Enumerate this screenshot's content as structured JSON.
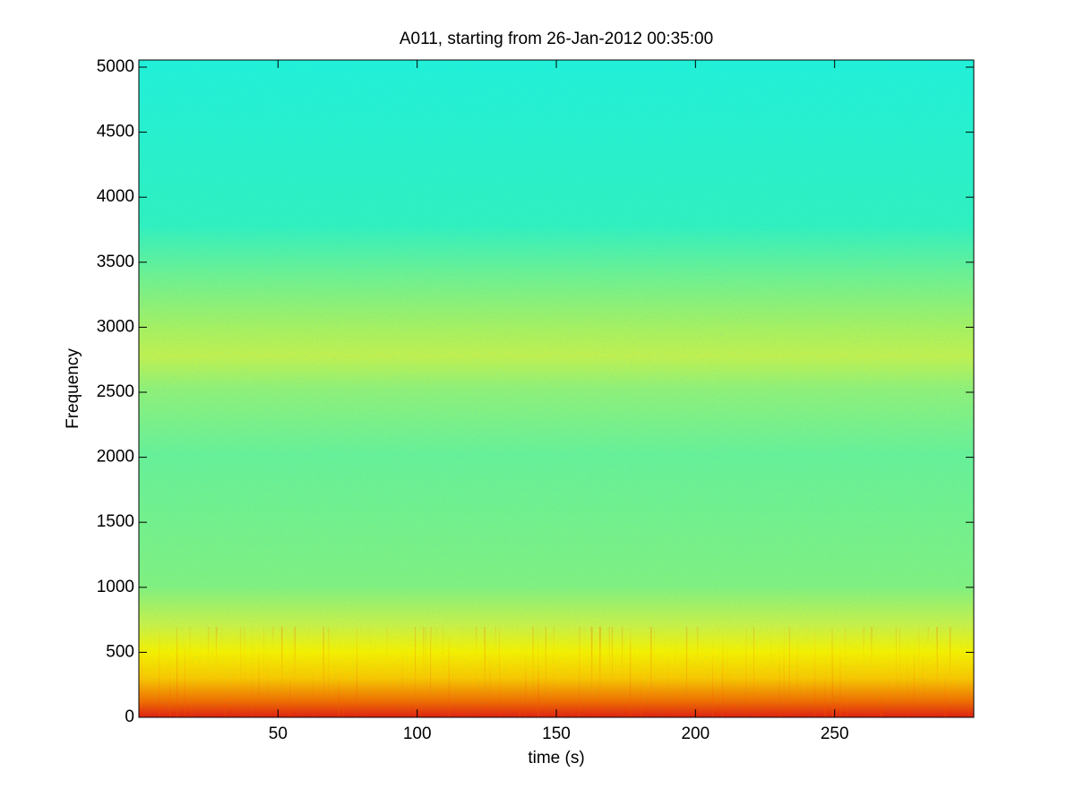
{
  "chart_data": {
    "type": "spectrogram",
    "title": "A011, starting from 26-Jan-2012 00:35:00",
    "x_label": "time (s)",
    "y_label": "Frequency",
    "xlim": [
      0,
      300
    ],
    "ylim": [
      0,
      5055
    ],
    "xticks": [
      50,
      100,
      150,
      200,
      250
    ],
    "yticks": [
      0,
      500,
      1000,
      1500,
      2000,
      2500,
      3000,
      3500,
      4000,
      4500,
      5000
    ]
  }
}
